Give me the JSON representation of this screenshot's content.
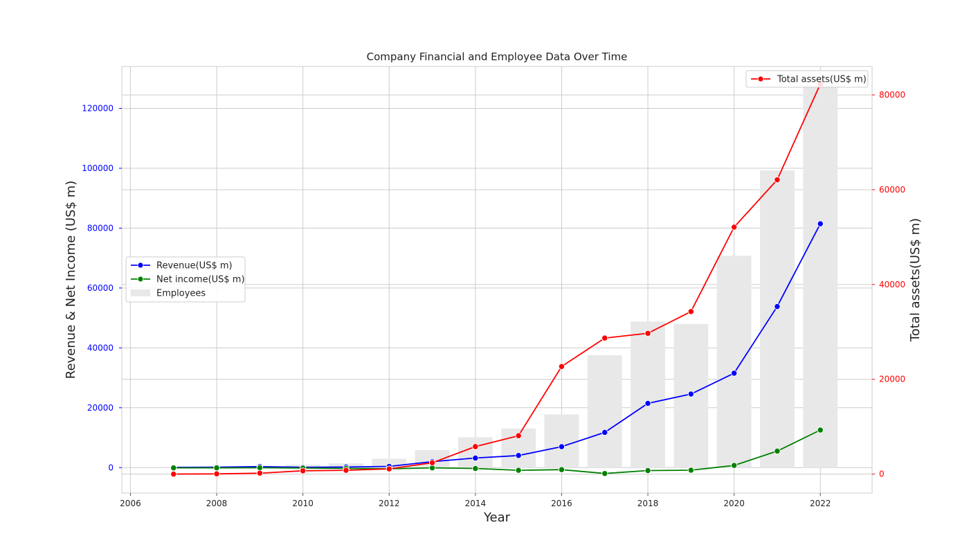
{
  "chart_data": {
    "type": "line",
    "title": "Company Financial and Employee Data Over Time",
    "xlabel": "Year",
    "ylabel_left": "Revenue & Net Income (US$ m)",
    "ylabel_right": "Total assets(US$ m)",
    "xlim": [
      2005.8,
      2023.2
    ],
    "ylim_left": [
      -8500,
      134000
    ],
    "ylim_right": [
      -4000,
      86000
    ],
    "x_ticks": [
      2006,
      2008,
      2010,
      2012,
      2014,
      2016,
      2018,
      2020,
      2022
    ],
    "y_ticks_left": [
      0,
      20000,
      40000,
      60000,
      80000,
      100000,
      120000
    ],
    "y_ticks_right": [
      0,
      20000,
      40000,
      60000,
      80000
    ],
    "x": [
      2007,
      2008,
      2009,
      2010,
      2011,
      2012,
      2013,
      2014,
      2015,
      2016,
      2017,
      2018,
      2019,
      2020,
      2021,
      2022
    ],
    "series": [
      {
        "name": "Revenue(US$ m)",
        "axis": "left",
        "type": "line",
        "color": "#0000ff",
        "values": [
          73,
          147,
          335,
          117,
          204,
          413,
          2013,
          3198,
          4046,
          7000,
          11759,
          21461,
          24578,
          31536,
          53823,
          81462
        ]
      },
      {
        "name": "Net income(US$ m)",
        "axis": "left",
        "type": "line",
        "color": "#008000",
        "values": [
          -78,
          -82,
          -56,
          -154,
          -254,
          -396,
          -74,
          -294,
          -889,
          -675,
          -1962,
          -976,
          -862,
          721,
          5519,
          12556
        ]
      },
      {
        "name": "Total assets(US$ m)",
        "axis": "right",
        "type": "line",
        "color": "#ff0000",
        "values": [
          0,
          50,
          200,
          700,
          800,
          1100,
          2400,
          5800,
          8100,
          22700,
          28700,
          29700,
          34300,
          52100,
          62100,
          82300
        ]
      },
      {
        "name": "Employees",
        "axis": "left",
        "type": "bar",
        "color": "#e8e8e8",
        "values": [
          268,
          252,
          514,
          899,
          1417,
          2964,
          5859,
          10161,
          13058,
          17782,
          37543,
          48817,
          48016,
          70757,
          99290,
          127855
        ]
      }
    ],
    "grid": true,
    "legend_left_placement": "center-left",
    "legend_right_placement": "top-right"
  }
}
